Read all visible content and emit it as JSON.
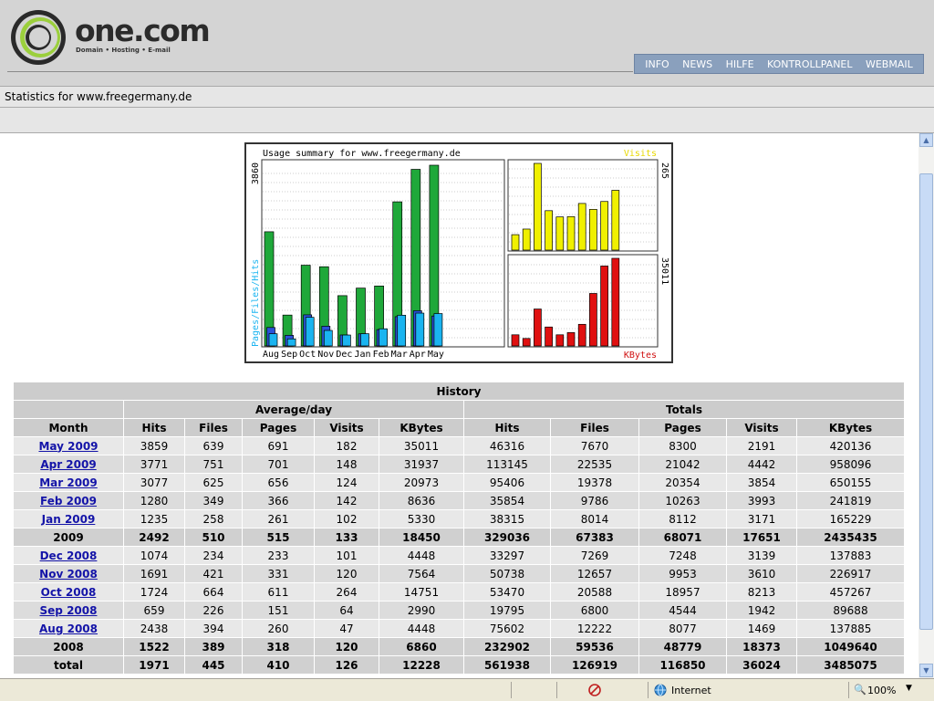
{
  "header": {
    "brand": "one.com",
    "tagline": "Domain • Hosting • E-mail",
    "nav": [
      "INFO",
      "NEWS",
      "HILFE",
      "KONTROLLPANEL",
      "WEBMAIL"
    ]
  },
  "stats_title": "Statistics for www.freegermany.de",
  "colors": {
    "hits": "#1fa83a",
    "files": "#2a52d8",
    "pages": "#1ab4f0",
    "visits": "#f0f000",
    "kbytes": "#e01010"
  },
  "chart_data": {
    "type": "bar",
    "title": "Usage summary for www.freegermany.de",
    "categories": [
      "Aug",
      "Sep",
      "Oct",
      "Nov",
      "Dec",
      "Jan",
      "Feb",
      "Mar",
      "Apr",
      "May"
    ],
    "left_axis_label": "Pages/Files/Hits",
    "left_max_label": "3860",
    "series": [
      {
        "name": "Hits",
        "values": [
          2438,
          659,
          1724,
          1691,
          1074,
          1235,
          1280,
          3077,
          3771,
          3859
        ]
      },
      {
        "name": "Files",
        "values": [
          394,
          226,
          664,
          421,
          234,
          258,
          349,
          625,
          751,
          639
        ]
      },
      {
        "name": "Pages",
        "values": [
          260,
          151,
          611,
          331,
          233,
          261,
          366,
          656,
          701,
          691
        ]
      }
    ],
    "visits": {
      "label": "Visits",
      "max_label": "265",
      "values": [
        47,
        64,
        264,
        120,
        101,
        102,
        142,
        124,
        148,
        182
      ]
    },
    "kbytes": {
      "label": "KBytes",
      "max_label": "35011",
      "values": [
        4448,
        2990,
        14751,
        7564,
        4448,
        5330,
        8636,
        20973,
        31937,
        35011
      ]
    }
  },
  "history": {
    "title": "History",
    "group_avg": "Average/day",
    "group_tot": "Totals",
    "col_month": "Month",
    "cols": [
      "Hits",
      "Files",
      "Pages",
      "Visits",
      "KBytes"
    ],
    "rows": [
      {
        "type": "month",
        "label": "May 2009",
        "v": [
          "3859",
          "639",
          "691",
          "182",
          "35011",
          "46316",
          "7670",
          "8300",
          "2191",
          "420136"
        ]
      },
      {
        "type": "month",
        "label": "Apr 2009",
        "v": [
          "3771",
          "751",
          "701",
          "148",
          "31937",
          "113145",
          "22535",
          "21042",
          "4442",
          "958096"
        ]
      },
      {
        "type": "month",
        "label": "Mar 2009",
        "v": [
          "3077",
          "625",
          "656",
          "124",
          "20973",
          "95406",
          "19378",
          "20354",
          "3854",
          "650155"
        ]
      },
      {
        "type": "month",
        "label": "Feb 2009",
        "v": [
          "1280",
          "349",
          "366",
          "142",
          "8636",
          "35854",
          "9786",
          "10263",
          "3993",
          "241819"
        ]
      },
      {
        "type": "month",
        "label": "Jan 2009",
        "v": [
          "1235",
          "258",
          "261",
          "102",
          "5330",
          "38315",
          "8014",
          "8112",
          "3171",
          "165229"
        ]
      },
      {
        "type": "year",
        "label": "2009",
        "v": [
          "2492",
          "510",
          "515",
          "133",
          "18450",
          "329036",
          "67383",
          "68071",
          "17651",
          "2435435"
        ]
      },
      {
        "type": "month",
        "label": "Dec 2008",
        "v": [
          "1074",
          "234",
          "233",
          "101",
          "4448",
          "33297",
          "7269",
          "7248",
          "3139",
          "137883"
        ]
      },
      {
        "type": "month",
        "label": "Nov 2008",
        "v": [
          "1691",
          "421",
          "331",
          "120",
          "7564",
          "50738",
          "12657",
          "9953",
          "3610",
          "226917"
        ]
      },
      {
        "type": "month",
        "label": "Oct 2008",
        "v": [
          "1724",
          "664",
          "611",
          "264",
          "14751",
          "53470",
          "20588",
          "18957",
          "8213",
          "457267"
        ]
      },
      {
        "type": "month",
        "label": "Sep 2008",
        "v": [
          "659",
          "226",
          "151",
          "64",
          "2990",
          "19795",
          "6800",
          "4544",
          "1942",
          "89688"
        ]
      },
      {
        "type": "month",
        "label": "Aug 2008",
        "v": [
          "2438",
          "394",
          "260",
          "47",
          "4448",
          "75602",
          "12222",
          "8077",
          "1469",
          "137885"
        ]
      },
      {
        "type": "year",
        "label": "2008",
        "v": [
          "1522",
          "389",
          "318",
          "120",
          "6860",
          "232902",
          "59536",
          "48779",
          "18373",
          "1049640"
        ]
      },
      {
        "type": "year",
        "label": "total",
        "v": [
          "1971",
          "445",
          "410",
          "126",
          "12228",
          "561938",
          "126919",
          "116850",
          "36024",
          "3485075"
        ]
      }
    ]
  },
  "status": {
    "zone": "Internet",
    "zoom": "100%"
  }
}
